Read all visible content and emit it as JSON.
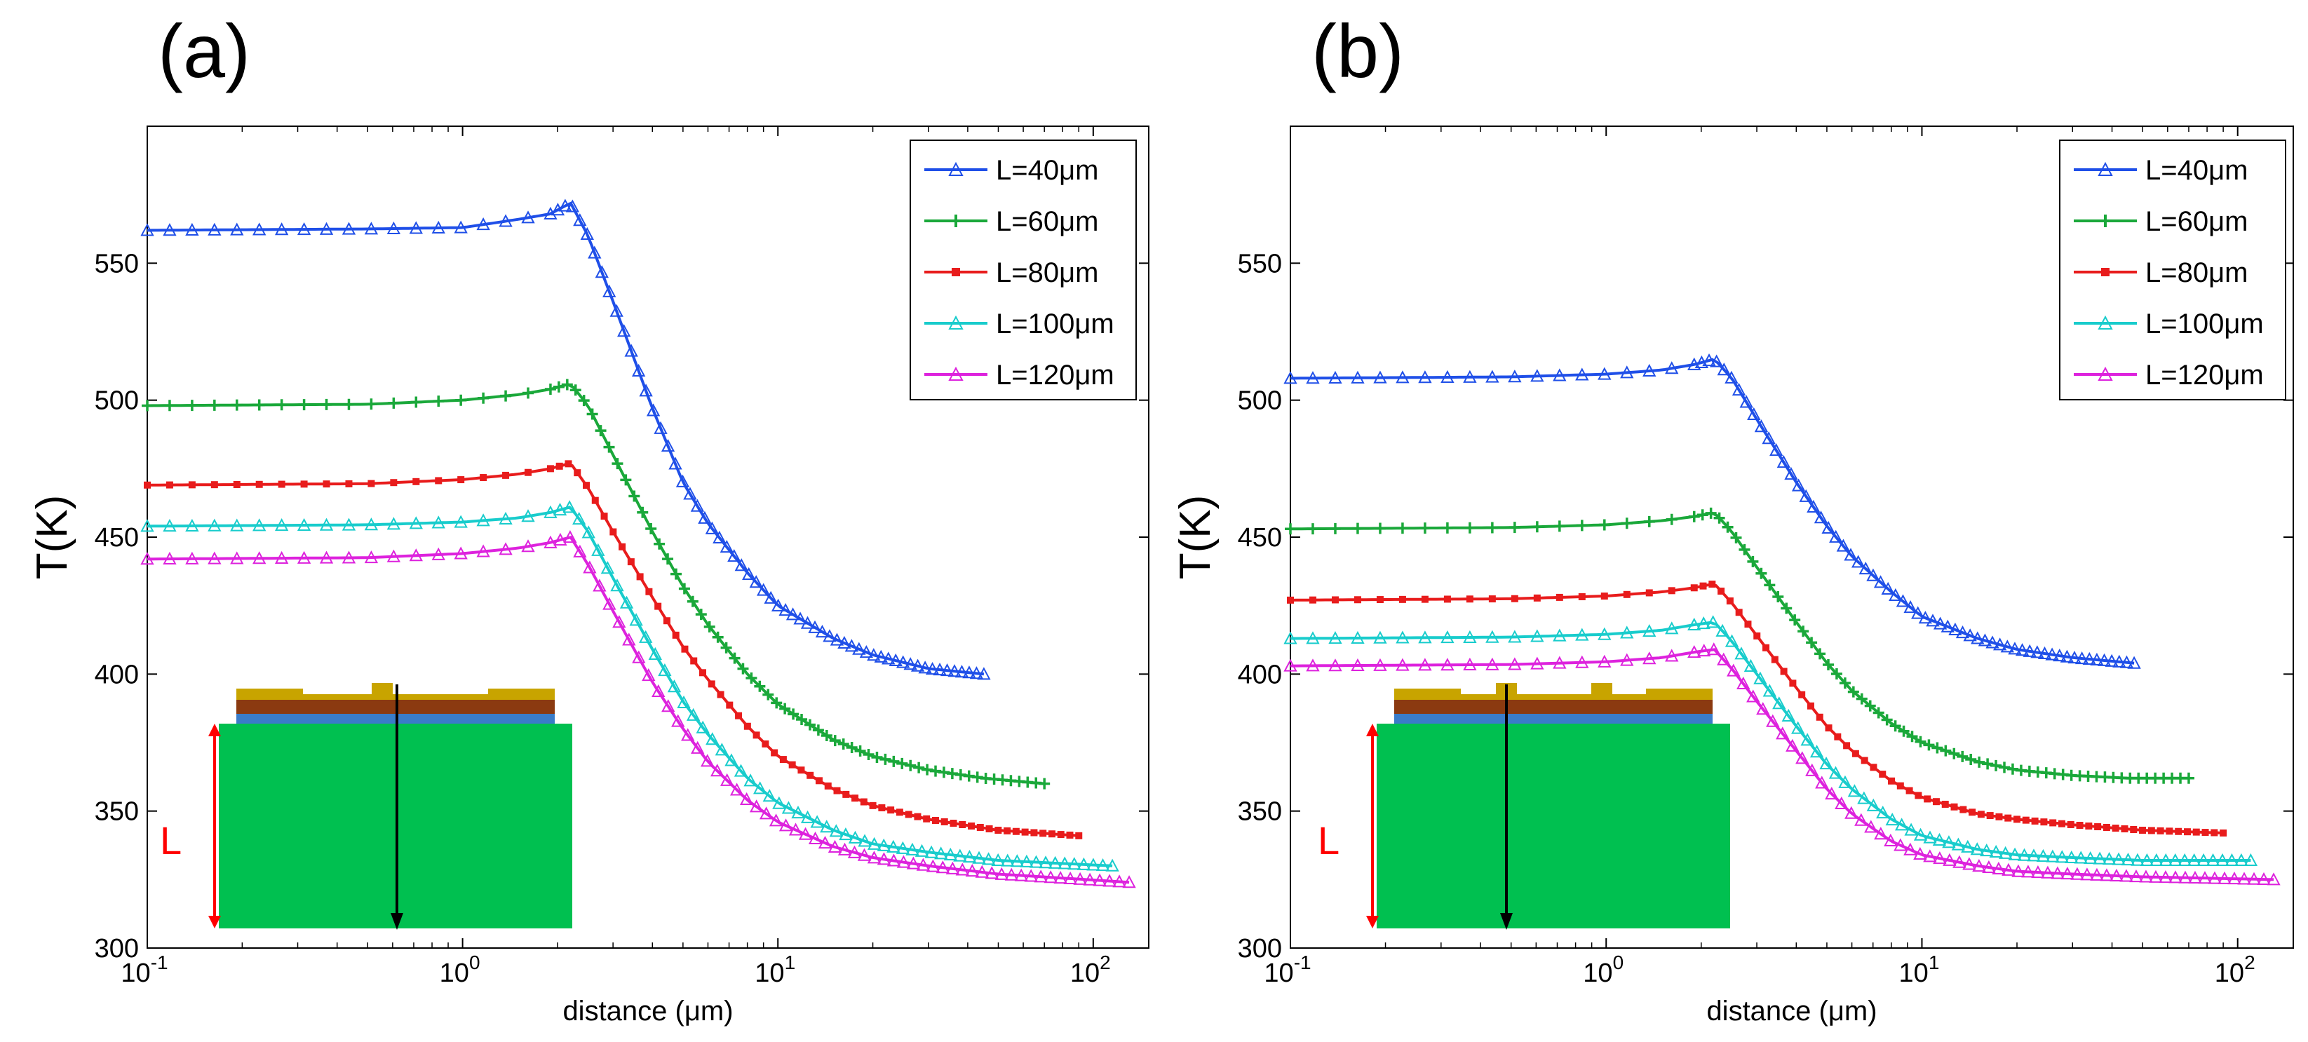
{
  "figure": {
    "panel_a_label": "(a)",
    "panel_b_label": "(b)"
  },
  "colors": {
    "s40": "#1f4fe8",
    "s60": "#1aa83a",
    "s80": "#e81c1c",
    "s100": "#18cccc",
    "s120": "#dd22dd",
    "inset_substrate": "#00c050",
    "inset_metal": "#c8a400",
    "inset_brown": "#8b3a10",
    "inset_blue": "#3a7cc8",
    "inset_l_arrow": "#ff0000"
  },
  "chart_data": [
    {
      "type": "line",
      "panel": "(a)",
      "title": "",
      "xlabel": "distance (μm)",
      "ylabel": "T(K)",
      "xscale": "log",
      "xlim": [
        0.1,
        150
      ],
      "ylim": [
        300,
        600
      ],
      "grid": false,
      "legend_position": "top-right",
      "x_ticks": [
        {
          "base": "10",
          "exp": "-1",
          "value": 0.1
        },
        {
          "base": "10",
          "exp": "0",
          "value": 1
        },
        {
          "base": "10",
          "exp": "1",
          "value": 10
        },
        {
          "base": "10",
          "exp": "2",
          "value": 100
        }
      ],
      "y_ticks": [
        "300",
        "350",
        "400",
        "450",
        "500",
        "550"
      ],
      "inset_label": "L",
      "series": [
        {
          "name": "L=40μm",
          "color": "#1f4fe8",
          "marker": "triangle",
          "x": [
            0.1,
            0.5,
            1.0,
            1.5,
            1.9,
            2.2,
            2.5,
            3,
            4,
            5,
            6,
            8,
            10,
            15,
            20,
            30,
            45
          ],
          "y": [
            562,
            562.5,
            563,
            566,
            568,
            572,
            560,
            536,
            497,
            470,
            455,
            437,
            425,
            413,
            407,
            402,
            400
          ]
        },
        {
          "name": "L=60μm",
          "color": "#1aa83a",
          "marker": "plus",
          "x": [
            0.1,
            0.5,
            1.0,
            1.5,
            1.9,
            2.2,
            2.5,
            3,
            4,
            5,
            6,
            8,
            10,
            15,
            20,
            30,
            45,
            70
          ],
          "y": [
            498,
            498.5,
            500,
            502,
            504,
            506,
            498,
            480,
            452,
            432,
            418,
            400,
            389,
            376,
            370,
            365,
            362,
            360
          ]
        },
        {
          "name": "L=80μm",
          "color": "#e81c1c",
          "marker": "square",
          "x": [
            0.1,
            0.5,
            1.0,
            1.5,
            1.9,
            2.2,
            2.5,
            3,
            4,
            5,
            6,
            8,
            10,
            15,
            20,
            30,
            50,
            90
          ],
          "y": [
            469,
            469.5,
            471,
            473,
            475,
            477,
            468,
            452,
            428,
            410,
            398,
            381,
            370,
            358,
            352,
            347,
            343,
            341
          ]
        },
        {
          "name": "L=100μm",
          "color": "#18cccc",
          "marker": "triangle",
          "x": [
            0.1,
            0.5,
            1.0,
            1.5,
            1.9,
            2.2,
            2.5,
            3,
            4,
            5,
            6,
            8,
            10,
            15,
            20,
            30,
            50,
            115
          ],
          "y": [
            454,
            454.5,
            455.5,
            457,
            459,
            461,
            452,
            435,
            409,
            390,
            378,
            362,
            353,
            343,
            338,
            335,
            332,
            330
          ]
        },
        {
          "name": "L=120μm",
          "color": "#dd22dd",
          "marker": "triangle",
          "x": [
            0.1,
            0.5,
            1.0,
            1.5,
            1.9,
            2.2,
            2.5,
            3,
            4,
            5,
            6,
            8,
            10,
            15,
            20,
            30,
            50,
            130
          ],
          "y": [
            442,
            442.5,
            444,
            446,
            448,
            450,
            440,
            423,
            397,
            380,
            368,
            354,
            346,
            337,
            333,
            330,
            327,
            324
          ]
        }
      ]
    },
    {
      "type": "line",
      "panel": "(b)",
      "title": "",
      "xlabel": "distance (μm)",
      "ylabel": "T(K)",
      "xscale": "log",
      "xlim": [
        0.1,
        150
      ],
      "ylim": [
        300,
        600
      ],
      "grid": false,
      "legend_position": "top-right",
      "x_ticks": [
        {
          "base": "10",
          "exp": "-1",
          "value": 0.1
        },
        {
          "base": "10",
          "exp": "0",
          "value": 1
        },
        {
          "base": "10",
          "exp": "1",
          "value": 10
        },
        {
          "base": "10",
          "exp": "2",
          "value": 100
        }
      ],
      "y_ticks": [
        "300",
        "350",
        "400",
        "450",
        "500",
        "550"
      ],
      "inset_label": "L",
      "series": [
        {
          "name": "L=40μm",
          "color": "#1f4fe8",
          "marker": "triangle",
          "x": [
            0.1,
            0.5,
            1.0,
            1.5,
            1.9,
            2.2,
            2.5,
            3,
            4,
            5,
            6,
            8,
            10,
            15,
            20,
            30,
            47
          ],
          "y": [
            508,
            508.5,
            509.5,
            511,
            513,
            515,
            508,
            493,
            470,
            454,
            443,
            430,
            421,
            413,
            409,
            406,
            404
          ]
        },
        {
          "name": "L=60μm",
          "color": "#1aa83a",
          "marker": "plus",
          "x": [
            0.1,
            0.5,
            1.0,
            1.5,
            1.9,
            2.2,
            2.5,
            3,
            4,
            5,
            6,
            8,
            10,
            15,
            20,
            30,
            45,
            70
          ],
          "y": [
            453,
            453.5,
            454.5,
            456,
            457.5,
            459,
            452,
            439,
            419,
            404,
            394,
            382,
            375,
            368,
            365,
            363,
            362,
            362
          ]
        },
        {
          "name": "L=80μm",
          "color": "#e81c1c",
          "marker": "square",
          "x": [
            0.1,
            0.5,
            1.0,
            1.5,
            1.9,
            2.2,
            2.5,
            3,
            4,
            5,
            6,
            8,
            10,
            15,
            20,
            30,
            50,
            90
          ],
          "y": [
            427,
            427.5,
            428.5,
            430,
            431.5,
            433,
            426,
            414,
            395,
            381,
            372,
            361,
            355,
            349,
            347,
            345,
            343,
            342
          ]
        },
        {
          "name": "L=100μm",
          "color": "#18cccc",
          "marker": "triangle",
          "x": [
            0.1,
            0.5,
            1.0,
            1.5,
            1.9,
            2.2,
            2.5,
            3,
            4,
            5,
            6,
            8,
            10,
            15,
            20,
            30,
            50,
            110
          ],
          "y": [
            413,
            413.5,
            414.5,
            416,
            418,
            419,
            412,
            400,
            381,
            367,
            358,
            347,
            341,
            336,
            334,
            333,
            332,
            332
          ]
        },
        {
          "name": "L=120μm",
          "color": "#dd22dd",
          "marker": "triangle",
          "x": [
            0.1,
            0.5,
            1.0,
            1.5,
            1.9,
            2.2,
            2.5,
            3,
            4,
            5,
            6,
            8,
            10,
            15,
            20,
            30,
            50,
            130
          ],
          "y": [
            403,
            403.5,
            404.5,
            406,
            408,
            409,
            402,
            390,
            372,
            358,
            349,
            339,
            334,
            330,
            328,
            327,
            326,
            325
          ]
        }
      ]
    }
  ]
}
